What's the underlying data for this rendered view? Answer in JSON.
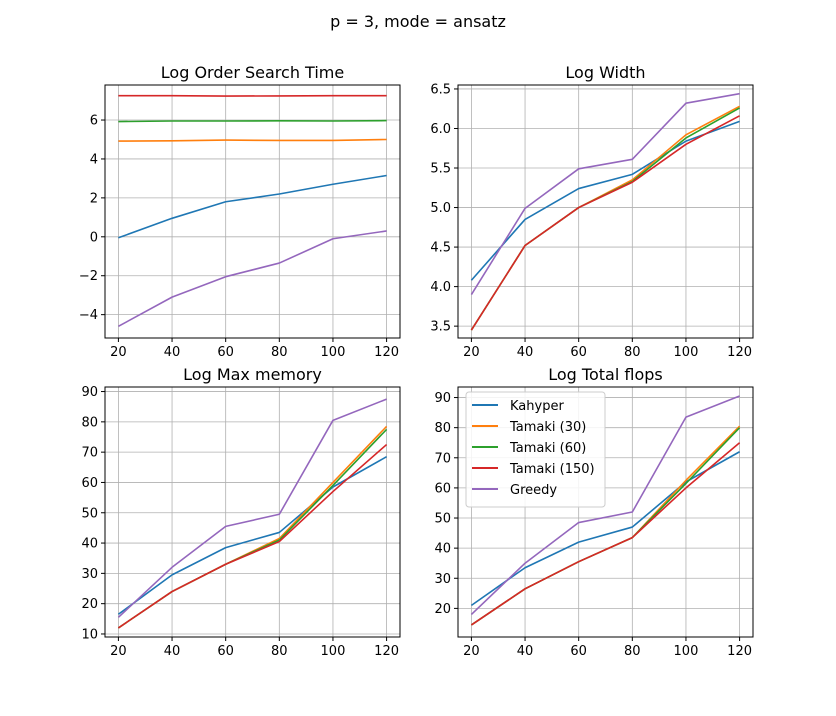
{
  "figure": {
    "suptitle": "p = 3, mode = ansatz"
  },
  "colors": {
    "Kahyper": "#1f77b4",
    "Tamaki (30)": "#ff7f0e",
    "Tamaki (60)": "#2ca02c",
    "Tamaki (150)": "#d62728",
    "Greedy": "#9467bd",
    "grid": "#b0b0b0"
  },
  "chart_data": [
    {
      "type": "line",
      "title": "Log Order Search Time",
      "x": [
        20,
        40,
        60,
        80,
        100,
        120
      ],
      "xticks": [
        "20",
        "40",
        "60",
        "80",
        "100",
        "120"
      ],
      "yticks": [
        "−4",
        "−2",
        "0",
        "2",
        "4",
        "6"
      ],
      "ylim": [
        -5.2,
        7.8
      ],
      "xlim": [
        15,
        125
      ],
      "grid": true,
      "legend": null,
      "series": [
        {
          "name": "Kahyper",
          "values": [
            -0.05,
            0.95,
            1.8,
            2.2,
            2.7,
            3.15
          ]
        },
        {
          "name": "Tamaki (30)",
          "values": [
            4.92,
            4.93,
            4.97,
            4.95,
            4.95,
            5.0
          ]
        },
        {
          "name": "Tamaki (60)",
          "values": [
            5.92,
            5.95,
            5.95,
            5.96,
            5.95,
            5.97
          ]
        },
        {
          "name": "Tamaki (150)",
          "values": [
            7.25,
            7.25,
            7.23,
            7.24,
            7.25,
            7.25
          ]
        },
        {
          "name": "Greedy",
          "values": [
            -4.6,
            -3.1,
            -2.05,
            -1.35,
            -0.1,
            0.3
          ]
        }
      ]
    },
    {
      "type": "line",
      "title": "Log Width",
      "x": [
        20,
        40,
        60,
        80,
        100,
        120
      ],
      "xticks": [
        "20",
        "40",
        "60",
        "80",
        "100",
        "120"
      ],
      "yticks": [
        "3.5",
        "4.0",
        "4.5",
        "5.0",
        "5.5",
        "6.0",
        "6.5"
      ],
      "ylim": [
        3.35,
        6.55
      ],
      "xlim": [
        15,
        125
      ],
      "grid": true,
      "legend": null,
      "series": [
        {
          "name": "Kahyper",
          "values": [
            4.08,
            4.85,
            5.24,
            5.42,
            5.84,
            6.09
          ]
        },
        {
          "name": "Tamaki (30)",
          "values": [
            3.45,
            4.52,
            5.0,
            5.35,
            5.92,
            6.28
          ]
        },
        {
          "name": "Tamaki (60)",
          "values": [
            3.45,
            4.52,
            5.0,
            5.33,
            5.88,
            6.26
          ]
        },
        {
          "name": "Tamaki (150)",
          "values": [
            3.45,
            4.52,
            5.0,
            5.32,
            5.8,
            6.16
          ]
        },
        {
          "name": "Greedy",
          "values": [
            3.9,
            4.99,
            5.49,
            5.61,
            6.32,
            6.44
          ]
        }
      ]
    },
    {
      "type": "line",
      "title": "Log Max memory",
      "x": [
        20,
        40,
        60,
        80,
        100,
        120
      ],
      "xticks": [
        "20",
        "40",
        "60",
        "80",
        "100",
        "120"
      ],
      "yticks": [
        "10",
        "20",
        "30",
        "40",
        "50",
        "60",
        "70",
        "80",
        "90"
      ],
      "ylim": [
        9,
        91.5
      ],
      "xlim": [
        15,
        125
      ],
      "grid": true,
      "legend": null,
      "series": [
        {
          "name": "Kahyper",
          "values": [
            16.5,
            29.5,
            38.5,
            43.5,
            58.5,
            68.5
          ]
        },
        {
          "name": "Tamaki (30)",
          "values": [
            12,
            24,
            33,
            41.5,
            60,
            78.5
          ]
        },
        {
          "name": "Tamaki (60)",
          "values": [
            12,
            24,
            33,
            41,
            59,
            77.5
          ]
        },
        {
          "name": "Tamaki (150)",
          "values": [
            12,
            24,
            33,
            40.5,
            57,
            72.5
          ]
        },
        {
          "name": "Greedy",
          "values": [
            15.5,
            32,
            45.5,
            49.5,
            80.5,
            87.5
          ]
        }
      ]
    },
    {
      "type": "line",
      "title": "Log Total flops",
      "x": [
        20,
        40,
        60,
        80,
        100,
        120
      ],
      "xticks": [
        "20",
        "40",
        "60",
        "80",
        "100",
        "120"
      ],
      "yticks": [
        "20",
        "30",
        "40",
        "50",
        "60",
        "70",
        "80",
        "90"
      ],
      "ylim": [
        10.5,
        93.5
      ],
      "xlim": [
        15,
        125
      ],
      "grid": true,
      "legend": "upper left",
      "series": [
        {
          "name": "Kahyper",
          "values": [
            21,
            33.5,
            42,
            47,
            62,
            72
          ]
        },
        {
          "name": "Tamaki (30)",
          "values": [
            14.5,
            26.5,
            35.5,
            43.5,
            62.5,
            80.5
          ]
        },
        {
          "name": "Tamaki (60)",
          "values": [
            14.5,
            26.5,
            35.5,
            43.5,
            61.5,
            80
          ]
        },
        {
          "name": "Tamaki (150)",
          "values": [
            14.5,
            26.5,
            35.5,
            43.5,
            60,
            75
          ]
        },
        {
          "name": "Greedy",
          "values": [
            18,
            35,
            48.5,
            52,
            83.5,
            90.5
          ]
        }
      ]
    }
  ]
}
